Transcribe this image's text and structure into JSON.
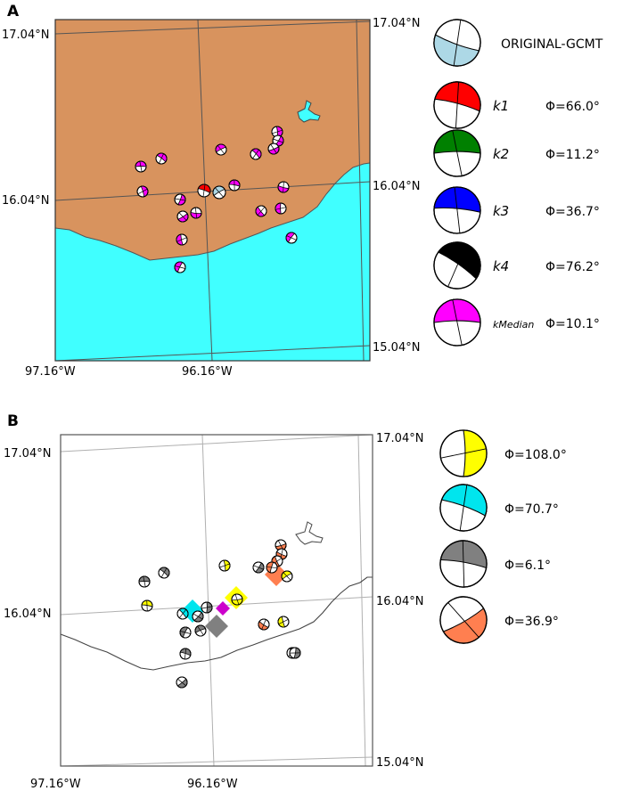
{
  "panels": [
    {
      "label": "A",
      "lat_top": "17.04°N",
      "lat_mid": "16.04°N",
      "lat_bottom": "15.04°N",
      "lon_left": "97.16°W",
      "lon_mid": "96.16°W",
      "land_color": "#d8935e",
      "sea_color": "#40ffff",
      "legend": [
        {
          "name": "ORIGINAL-GCMT",
          "phi": "",
          "color": "#add8e6"
        },
        {
          "name": "k1",
          "phi": "Φ=66.0°",
          "color": "#ff0000"
        },
        {
          "name": "k2",
          "phi": "Φ=11.2°",
          "color": "#008000"
        },
        {
          "name": "k3",
          "phi": "Φ=36.7°",
          "color": "#0000ff"
        },
        {
          "name": "k4",
          "phi": "Φ=76.2°",
          "color": "#000000"
        },
        {
          "name": "kMedian",
          "phi": "Φ=10.1°",
          "color": "#ff00ff"
        }
      ]
    },
    {
      "label": "B",
      "lat_top": "17.04°N",
      "lat_mid": "16.04°N",
      "lat_bottom": "15.04°N",
      "lon_left": "97.16°W",
      "lon_mid": "96.16°W",
      "legend": [
        {
          "name": "",
          "phi": "Φ=108.0°",
          "color": "#ffff00"
        },
        {
          "name": "",
          "phi": "Φ=70.7°",
          "color": "#00e5ee"
        },
        {
          "name": "",
          "phi": "Φ=6.1°",
          "color": "#808080"
        },
        {
          "name": "",
          "phi": "Φ=36.9°",
          "color": "#ff7f50"
        }
      ]
    }
  ]
}
